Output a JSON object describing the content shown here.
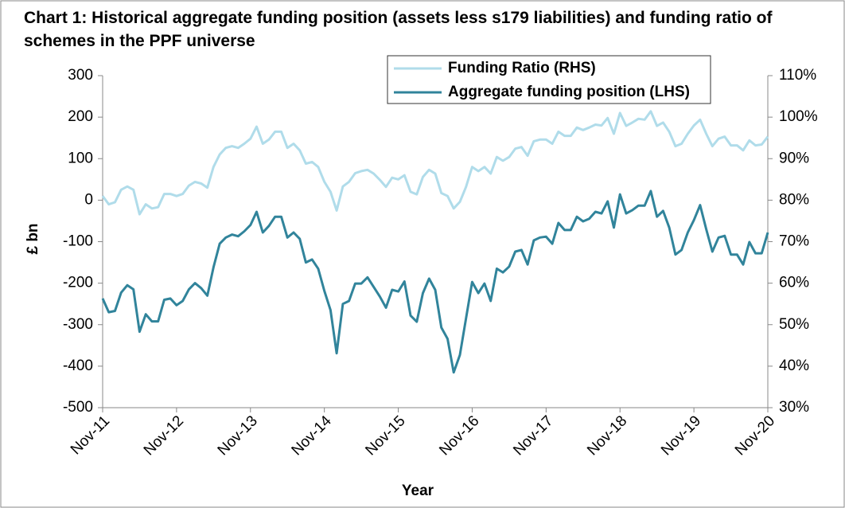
{
  "chart_data": {
    "type": "line",
    "title": "Chart 1: Historical aggregate funding position (assets less s179 liabilities) and funding ratio of schemes in the PPF universe",
    "ylabel": "£ bn",
    "xlabel": "Year",
    "categories": [
      "Nov-11",
      null,
      null,
      null,
      null,
      null,
      null,
      null,
      null,
      null,
      null,
      null,
      "Nov-12",
      null,
      null,
      null,
      null,
      null,
      null,
      null,
      null,
      null,
      null,
      null,
      "Nov-13",
      null,
      null,
      null,
      null,
      null,
      null,
      null,
      null,
      null,
      null,
      null,
      "Nov-14",
      null,
      null,
      null,
      null,
      null,
      null,
      null,
      null,
      null,
      null,
      null,
      "Nov-15",
      null,
      null,
      null,
      null,
      null,
      null,
      null,
      null,
      null,
      null,
      null,
      "Nov-16",
      null,
      null,
      null,
      null,
      null,
      null,
      null,
      null,
      null,
      null,
      null,
      "Nov-17",
      null,
      null,
      null,
      null,
      null,
      null,
      null,
      null,
      null,
      null,
      null,
      "Nov-18",
      null,
      null,
      null,
      null,
      null,
      null,
      null,
      null,
      null,
      null,
      null,
      "Nov-19",
      null,
      null,
      null,
      null,
      null,
      null,
      null,
      null,
      null,
      null,
      null,
      "Nov-20"
    ],
    "series": [
      {
        "name": "Funding Ratio (RHS)",
        "color": "#b0dcea",
        "axis": "y2",
        "values": [
          81,
          79,
          79.5,
          82.5,
          83.3,
          82.5,
          76.6,
          79,
          78,
          78.3,
          81.5,
          81.5,
          81,
          81.5,
          83.5,
          84.4,
          84,
          83,
          88,
          91,
          92.6,
          93,
          92.6,
          93.6,
          94.8,
          97.7,
          93.6,
          94.6,
          96.5,
          96.5,
          92.6,
          93.6,
          92,
          88.8,
          89.2,
          88,
          84.4,
          82,
          77.5,
          83.3,
          84.4,
          86.5,
          87,
          87.3,
          86.4,
          84.9,
          83.2,
          85.4,
          85,
          86,
          82,
          81.4,
          85.6,
          87.3,
          86.4,
          81.7,
          81,
          78,
          79.6,
          83.2,
          88,
          87,
          88,
          86.4,
          90.4,
          89.5,
          90.4,
          92.4,
          92.8,
          90.7,
          94.2,
          94.6,
          94.6,
          93.6,
          96.5,
          95.5,
          95.5,
          97.5,
          96.9,
          97.5,
          98.2,
          98,
          99.8,
          96,
          101,
          97.9,
          98.7,
          99.6,
          99.4,
          101.4,
          97.9,
          98.7,
          96.5,
          93,
          93.6,
          96,
          98,
          99.4,
          96,
          93,
          94.8,
          95.3,
          93.2,
          93.2,
          92,
          94.4,
          93.2,
          93.4,
          95.3
        ]
      },
      {
        "name": "Aggregate funding position (LHS)",
        "color": "#31849b",
        "values": [
          -237,
          -270,
          -267,
          -223,
          -205,
          -215,
          -317,
          -275,
          -292,
          -292,
          -240,
          -237,
          -253,
          -243,
          -215,
          -200,
          -212,
          -230,
          -162,
          -105,
          -90,
          -83,
          -87,
          -75,
          -60,
          -28,
          -78,
          -62,
          -40,
          -40,
          -90,
          -78,
          -93,
          -150,
          -143,
          -165,
          -219,
          -265,
          -369,
          -250,
          -243,
          -201,
          -201,
          -186,
          -209,
          -232,
          -259,
          -216,
          -220,
          -196,
          -278,
          -293,
          -224,
          -189,
          -216,
          -307,
          -334,
          -415,
          -373,
          -285,
          -197,
          -224,
          -201,
          -243,
          -165,
          -174,
          -160,
          -124,
          -120,
          -155,
          -97,
          -90,
          -88,
          -105,
          -55,
          -72,
          -72,
          -40,
          -51,
          -45,
          -28,
          -32,
          -3,
          -66,
          14,
          -32,
          -24,
          -13,
          -13,
          22,
          -40,
          -26,
          -66,
          -131,
          -120,
          -78,
          -48,
          -12,
          -70,
          -124,
          -90,
          -86,
          -131,
          -131,
          -155,
          -101,
          -128,
          -128,
          -78
        ]
      }
    ],
    "ylim": [
      -500,
      300
    ],
    "yticks": [
      300,
      200,
      100,
      0,
      -100,
      -200,
      -300,
      -400,
      -500
    ],
    "y2lim": [
      30,
      110
    ],
    "y2ticks": [
      {
        "value": 110,
        "label": "110%"
      },
      {
        "value": 100,
        "label": "100%"
      },
      {
        "value": 90,
        "label": "90%"
      },
      {
        "value": 80,
        "label": "80%"
      },
      {
        "value": 70,
        "label": "70%"
      },
      {
        "value": 60,
        "label": "60%"
      },
      {
        "value": 50,
        "label": "50%"
      },
      {
        "value": 40,
        "label": "40%"
      },
      {
        "value": 30,
        "label": "30%"
      }
    ],
    "legend": "top"
  }
}
